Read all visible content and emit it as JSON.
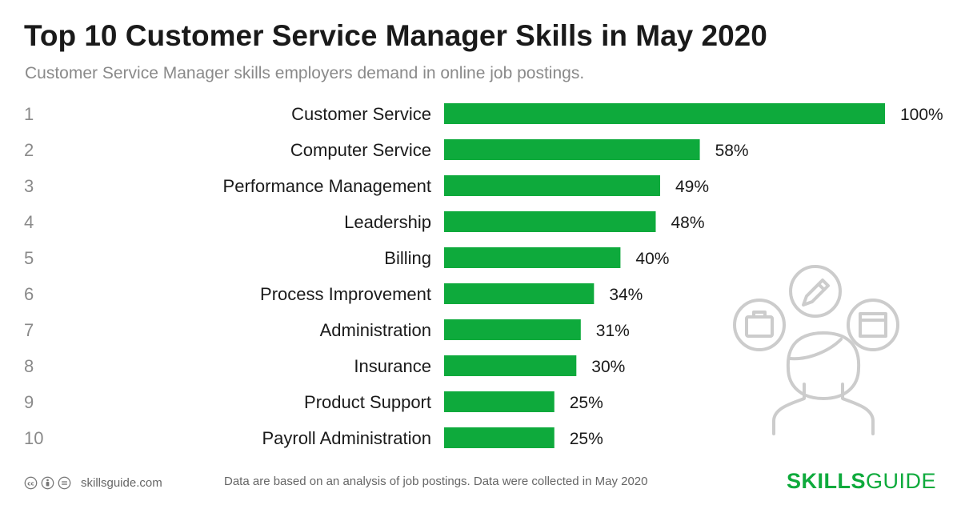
{
  "header": {
    "title": "Top 10 Customer Service Manager Skills in May 2020",
    "subtitle": "Customer Service Manager skills employers demand in online job postings."
  },
  "chart_data": {
    "type": "bar",
    "orientation": "horizontal",
    "ranks": [
      "1",
      "2",
      "3",
      "4",
      "5",
      "6",
      "7",
      "8",
      "9",
      "10"
    ],
    "categories": [
      "Customer Service",
      "Computer Service",
      "Performance Management",
      "Leadership",
      "Billing",
      "Process Improvement",
      "Administration",
      "Insurance",
      "Product Support",
      "Payroll Administration"
    ],
    "values": [
      100,
      58,
      49,
      48,
      40,
      34,
      31,
      30,
      25,
      25
    ],
    "value_labels": [
      "100%",
      "58%",
      "49%",
      "48%",
      "40%",
      "34%",
      "31%",
      "30%",
      "25%",
      "25%"
    ],
    "xlim": [
      0,
      100
    ],
    "grid": false,
    "legend": "none",
    "bar_color": "#0eaa3c"
  },
  "footer": {
    "site": "skillsguide.com",
    "note": "Data are based on an analysis of job postings. Data were collected in May 2020",
    "brand_bold": "SKILLS",
    "brand_light": "GUIDE",
    "brand_color": "#0eaa3c",
    "license_icons": [
      "creative-commons-icon",
      "attribution-icon",
      "no-derivatives-icon"
    ]
  },
  "illustration": {
    "icons": [
      "briefcase-icon",
      "pencil-icon",
      "browser-window-icon",
      "person-icon"
    ],
    "color": "#cccccc"
  }
}
